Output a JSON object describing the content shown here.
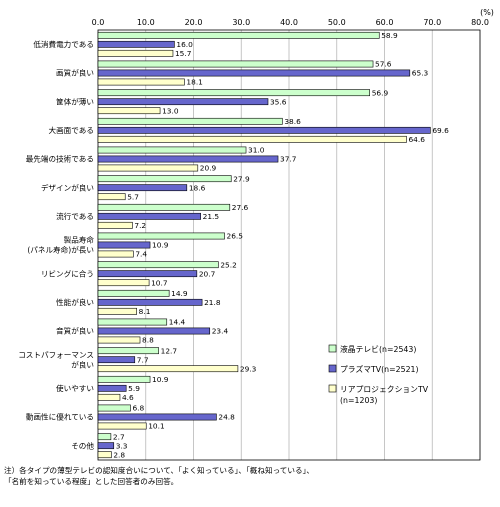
{
  "chart_data": {
    "type": "bar",
    "orientation": "horizontal",
    "unit_label": "(%)",
    "xlim": [
      0,
      80
    ],
    "xticks": [
      "0.0",
      "10.0",
      "20.0",
      "30.0",
      "40.0",
      "50.0",
      "60.0",
      "70.0",
      "80.0"
    ],
    "grid": true,
    "legend_position": "right",
    "categories": [
      [
        "低消費電力である"
      ],
      [
        "画質が良い"
      ],
      [
        "筐体が薄い"
      ],
      [
        "大画面である"
      ],
      [
        "最先端の技術である"
      ],
      [
        "デザインが良い"
      ],
      [
        "流行である"
      ],
      [
        "製品寿命",
        "(パネル寿命)が長い"
      ],
      [
        "リビングに合う"
      ],
      [
        "性能が良い"
      ],
      [
        "音質が良い"
      ],
      [
        "コストパフォーマンス",
        "が良い"
      ],
      [
        "使いやすい"
      ],
      [
        "動画性に優れている"
      ],
      [
        "その他"
      ]
    ],
    "series": [
      {
        "name": "液晶テレビ(n=2543)",
        "color": "#ccffcc",
        "values": [
          58.9,
          57.6,
          56.9,
          38.6,
          31.0,
          27.9,
          27.6,
          26.5,
          25.2,
          14.9,
          14.4,
          12.7,
          10.9,
          6.8,
          2.7
        ]
      },
      {
        "name": "プラズマTV(n=2521)",
        "color": "#6666cc",
        "values": [
          16.0,
          65.3,
          35.6,
          69.6,
          37.7,
          18.6,
          21.5,
          10.9,
          20.7,
          21.8,
          23.4,
          7.7,
          5.9,
          24.8,
          3.3
        ]
      },
      {
        "name": "リアプロジェクションTV(n=1203)",
        "color": "#ffffcc",
        "values": [
          15.7,
          18.1,
          13.0,
          64.6,
          20.9,
          5.7,
          7.2,
          7.4,
          10.7,
          8.1,
          8.8,
          29.3,
          4.6,
          10.1,
          2.8
        ]
      }
    ]
  },
  "legend": [
    [
      "液晶テレビ(n=2543)"
    ],
    [
      "プラズマTV(n=2521)"
    ],
    [
      "リアプロジェクションTV",
      "(n=1203)"
    ]
  ],
  "note": {
    "line1": "注）各タイプの薄型テレビの認知度合いについて、「よく知っている」、「概ね知っている」、",
    "line2": "「名前を知っている程度」とした回答者のみ回答。"
  }
}
